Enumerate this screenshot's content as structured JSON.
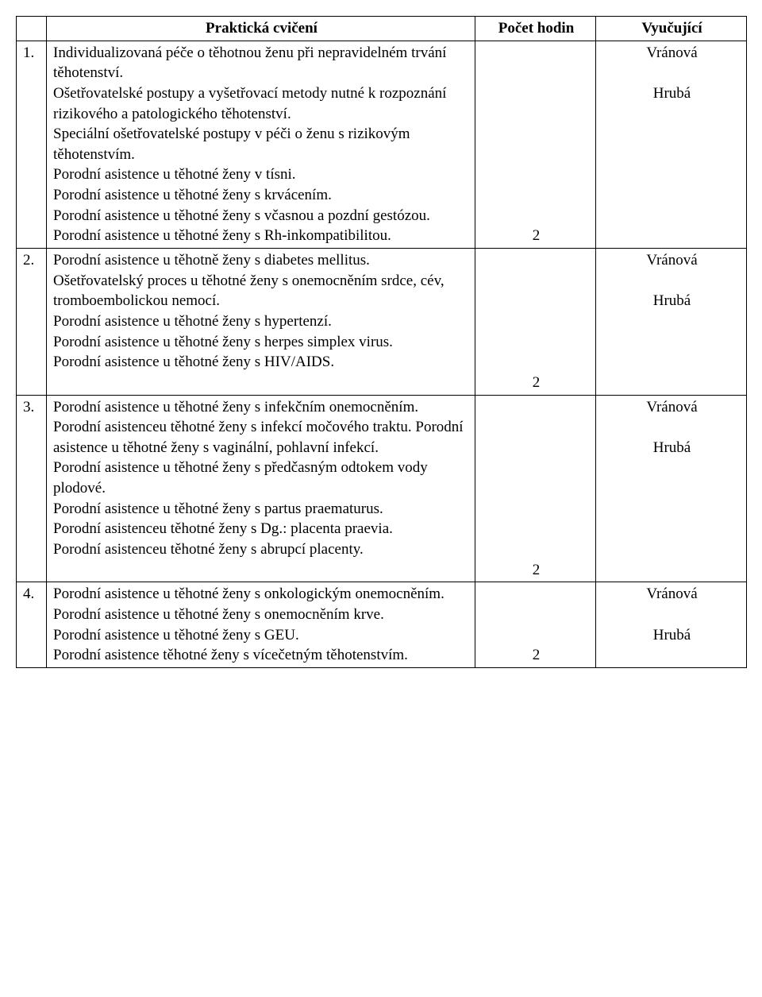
{
  "columns": {
    "num": "",
    "topic": "Praktická cvičení",
    "hours": "Počet hodin",
    "teacher": "Vyučující"
  },
  "rows": [
    {
      "num": "1.",
      "topic": "Individualizovaná péče o těhotnou ženu při nepravidelném trvání těhotenství.\nOšetřovatelské postupy a vyšetřovací metody nutné k rozpoznání rizikového a patologického těhotenství.\nSpeciální ošetřovatelské postupy v péči o ženu s rizikovým těhotenstvím.\nPorodní asistence u těhotné ženy v tísni.\nPorodní asistence u těhotné ženy s krvácením.\nPorodní asistence u těhotné ženy s včasnou a pozdní gestózou.\nPorodní asistence u těhotné ženy s Rh-inkompatibilitou.",
      "hours": "2",
      "teacher1": "Vránová",
      "teacher2": "Hrubá"
    },
    {
      "num": "2.",
      "topic": "Porodní asistence u těhotně ženy s diabetes mellitus.\nOšetřovatelský proces u těhotné ženy s onemocněním srdce, cév, tromboembolickou nemocí.\nPorodní asistence u těhotné ženy s hypertenzí.\nPorodní asistence u těhotné ženy s herpes simplex virus.\nPorodní asistence u těhotné ženy s HIV/AIDS.\n",
      "hours": "2",
      "teacher1": "Vránová",
      "teacher2": "Hrubá"
    },
    {
      "num": "3.",
      "topic": "Porodní asistence u těhotné ženy s infekčním onemocněním.\nPorodní asistenceu těhotné ženy s infekcí močového traktu. Porodní asistence u těhotné ženy s vaginální, pohlavní infekcí.\nPorodní asistence u těhotné ženy s předčasným odtokem vody plodové.\nPorodní asistence u těhotné ženy s partus praematurus.\nPorodní asistenceu těhotné ženy s Dg.: placenta praevia.\nPorodní asistenceu těhotné ženy s abrupcí placenty.\n",
      "hours": "2",
      "teacher1": "Vránová",
      "teacher2": "Hrubá"
    },
    {
      "num": "4.",
      "topic": "Porodní asistence u těhotné ženy s onkologickým onemocněním.\nPorodní asistence u těhotné ženy s onemocněním krve.\nPorodní asistence u těhotné ženy s GEU.\nPorodní asistence těhotné ženy s vícečetným těhotenstvím.",
      "hours": "2",
      "teacher1": "Vránová",
      "teacher2": "Hrubá"
    }
  ]
}
